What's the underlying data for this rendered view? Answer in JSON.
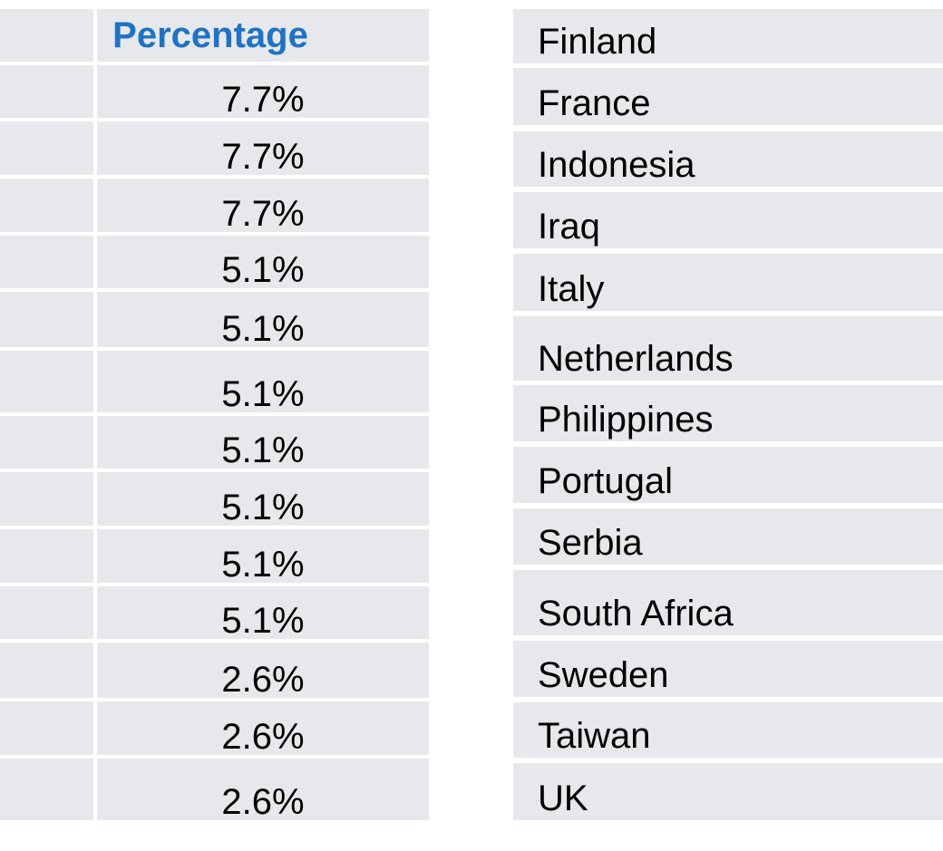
{
  "left_table": {
    "header": "Percentage",
    "rows": [
      "7.7%",
      "7.7%",
      "7.7%",
      "5.1%",
      "5.1%",
      "5.1%",
      "5.1%",
      "5.1%",
      "5.1%",
      "5.1%",
      "2.6%",
      "2.6%",
      "2.6%"
    ]
  },
  "right_table": {
    "rows": [
      "Finland",
      "France",
      "Indonesia",
      "Iraq",
      "Italy",
      "Netherlands",
      "Philippines",
      "Portugal",
      "Serbia",
      "South Africa",
      "Sweden",
      "Taiwan",
      "UK"
    ]
  }
}
